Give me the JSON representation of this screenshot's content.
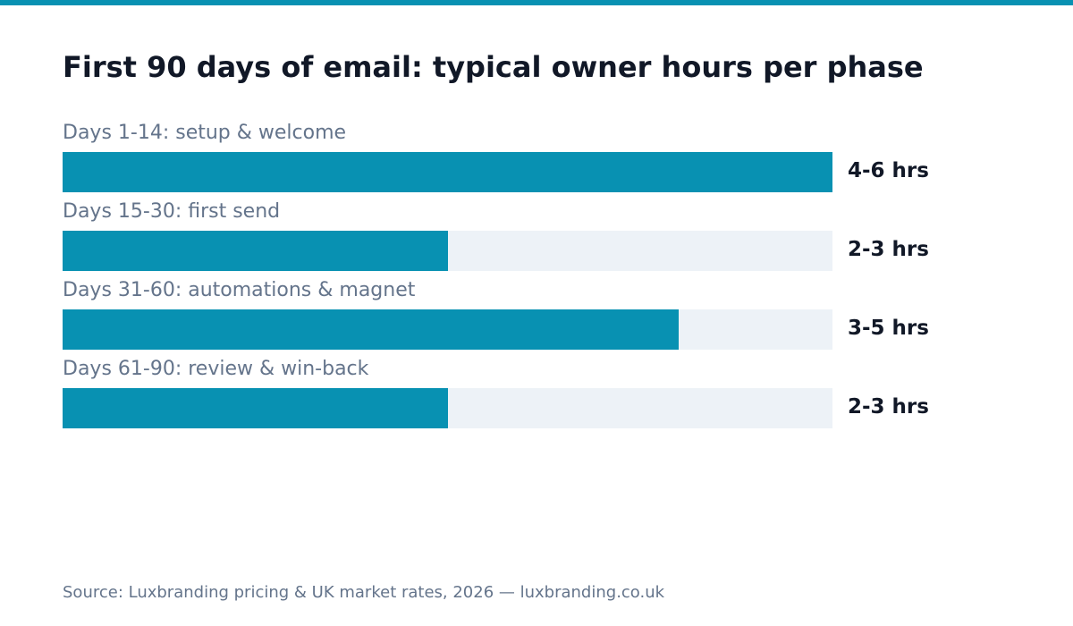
{
  "colors": {
    "accent": "#0891b2",
    "track": "#edf2f7",
    "title": "#111827",
    "muted": "#64748b"
  },
  "title": "First 90 days of email: typical owner hours per phase",
  "source": "Source: Luxbranding pricing & UK market rates, 2026 — luxbranding.co.uk",
  "chart_data": {
    "type": "bar",
    "orientation": "horizontal",
    "title": "First 90 days of email: typical owner hours per phase",
    "categories": [
      "Days 1-14: setup & welcome",
      "Days 15-30: first send",
      "Days 31-60: automations & magnet",
      "Days 61-90: review & win-back"
    ],
    "series": [
      {
        "values": [
          6,
          3,
          4.8,
          3
        ]
      }
    ],
    "value_labels": [
      "4-6 hrs",
      "2-3 hrs",
      "3-5 hrs",
      "2-3 hrs"
    ],
    "xlim": [
      0,
      6
    ],
    "grid": false,
    "legend": "none"
  }
}
